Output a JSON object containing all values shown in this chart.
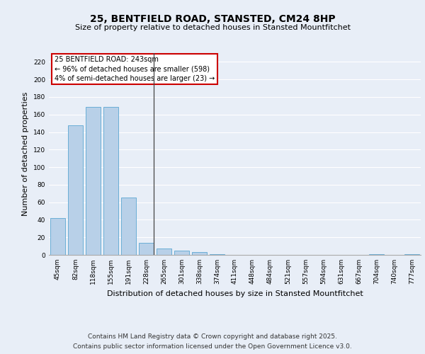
{
  "title": "25, BENTFIELD ROAD, STANSTED, CM24 8HP",
  "subtitle": "Size of property relative to detached houses in Stansted Mountfitchet",
  "xlabel": "Distribution of detached houses by size in Stansted Mountfitchet",
  "ylabel": "Number of detached properties",
  "footer_line1": "Contains HM Land Registry data © Crown copyright and database right 2025.",
  "footer_line2": "Contains public sector information licensed under the Open Government Licence v3.0.",
  "categories": [
    "45sqm",
    "82sqm",
    "118sqm",
    "155sqm",
    "191sqm",
    "228sqm",
    "265sqm",
    "301sqm",
    "338sqm",
    "374sqm",
    "411sqm",
    "448sqm",
    "484sqm",
    "521sqm",
    "557sqm",
    "594sqm",
    "631sqm",
    "667sqm",
    "704sqm",
    "740sqm",
    "777sqm"
  ],
  "values": [
    42,
    148,
    169,
    169,
    65,
    14,
    7,
    5,
    3,
    1,
    0,
    0,
    0,
    0,
    0,
    0,
    0,
    0,
    1,
    0,
    1
  ],
  "bar_color": "#b8d0e8",
  "bar_edge_color": "#6aaed6",
  "annotation_box_text": "25 BENTFIELD ROAD: 243sqm\n← 96% of detached houses are smaller (598)\n4% of semi-detached houses are larger (23) →",
  "annotation_box_color": "#ffffff",
  "annotation_box_edge_color": "#cc0000",
  "vline_x": 5.43,
  "ylim": [
    0,
    230
  ],
  "yticks": [
    0,
    20,
    40,
    60,
    80,
    100,
    120,
    140,
    160,
    180,
    200,
    220
  ],
  "bg_color": "#e8eef7",
  "plot_bg_color": "#e8eef7",
  "grid_color": "#ffffff",
  "title_fontsize": 10,
  "subtitle_fontsize": 8,
  "xlabel_fontsize": 8,
  "ylabel_fontsize": 8,
  "tick_fontsize": 6.5,
  "annotation_fontsize": 7,
  "footer_fontsize": 6.5
}
